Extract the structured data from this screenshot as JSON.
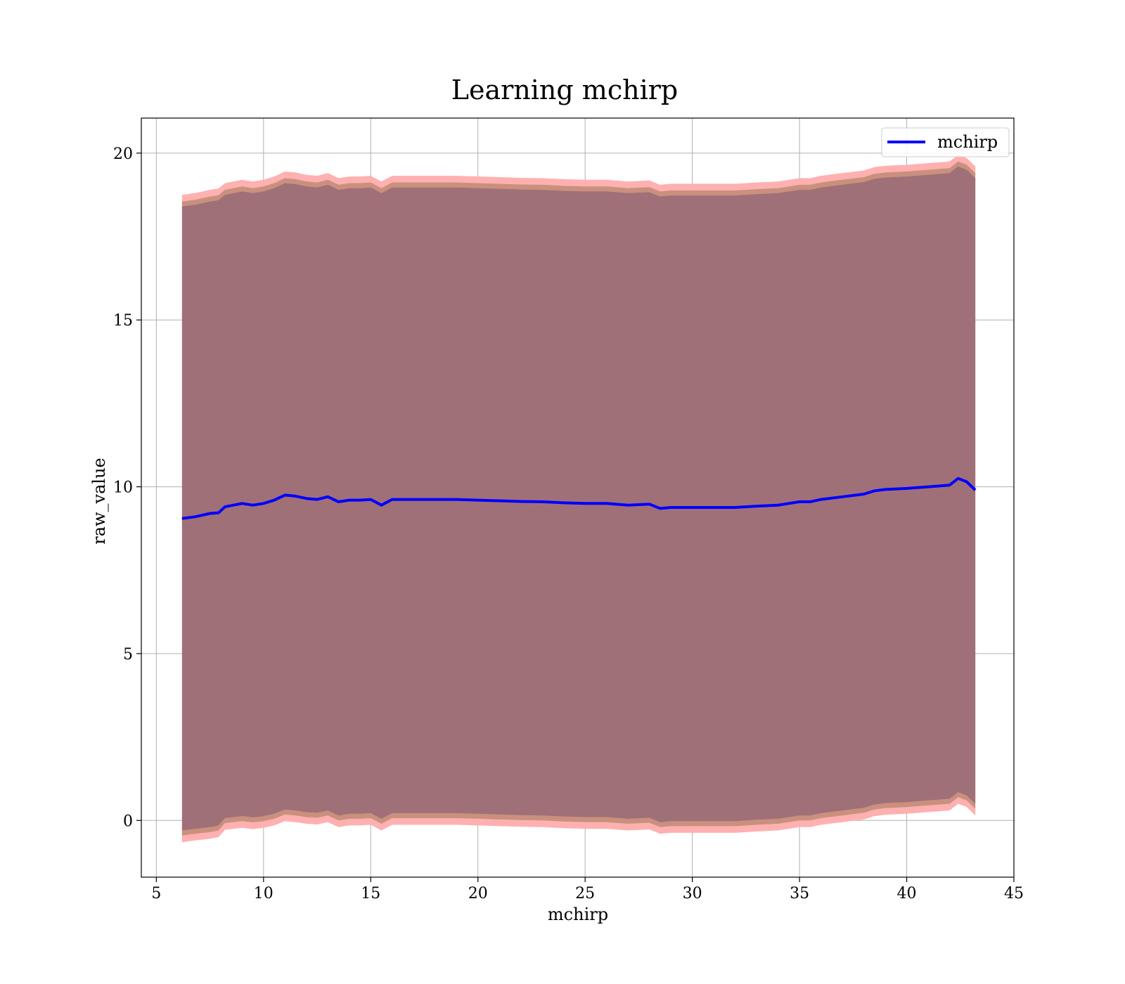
{
  "chart_data": {
    "type": "area",
    "title": "Learning mchirp",
    "xlabel": "mchirp",
    "ylabel": "raw_value",
    "xlim": [
      4.3,
      45
    ],
    "ylim": [
      -1.7,
      21.05
    ],
    "xticks": [
      5,
      10,
      15,
      20,
      25,
      30,
      35,
      40,
      45
    ],
    "yticks": [
      0,
      5,
      10,
      15,
      20
    ],
    "grid": true,
    "legend": {
      "position": "top-right",
      "entries": [
        "mchirp"
      ]
    },
    "colors": {
      "line": "#0000ff",
      "band_outer": "#ffb0b0",
      "band_middle": "#c9907e",
      "band_inner": "#a07078",
      "grid": "#b0b0b0"
    },
    "series": [
      {
        "name": "mchirp",
        "x": [
          6.2,
          6.8,
          7.5,
          7.9,
          8.2,
          9.0,
          9.5,
          10.0,
          10.5,
          11.0,
          11.5,
          12.0,
          12.5,
          13.0,
          13.5,
          14.0,
          14.5,
          15.0,
          15.5,
          16.0,
          17.0,
          18.0,
          19.0,
          20.0,
          21.0,
          22.0,
          23.0,
          24.0,
          25.0,
          26.0,
          27.0,
          28.0,
          28.5,
          29.0,
          30.0,
          31.0,
          32.0,
          33.0,
          34.0,
          35.0,
          35.5,
          36.0,
          37.0,
          38.0,
          38.5,
          39.0,
          40.0,
          41.0,
          42.0,
          42.4,
          42.8,
          43.2
        ],
        "mean": [
          9.05,
          9.1,
          9.2,
          9.22,
          9.4,
          9.5,
          9.45,
          9.5,
          9.6,
          9.75,
          9.72,
          9.65,
          9.62,
          9.7,
          9.55,
          9.6,
          9.6,
          9.62,
          9.45,
          9.62,
          9.62,
          9.62,
          9.62,
          9.6,
          9.58,
          9.56,
          9.55,
          9.52,
          9.5,
          9.5,
          9.45,
          9.48,
          9.35,
          9.38,
          9.38,
          9.38,
          9.38,
          9.42,
          9.45,
          9.55,
          9.55,
          9.62,
          9.7,
          9.78,
          9.88,
          9.92,
          9.95,
          10.0,
          10.05,
          10.25,
          10.15,
          9.9
        ],
        "bands": [
          {
            "sigma": 3,
            "lower": [
              -0.65,
              -0.6,
              -0.55,
              -0.5,
              -0.28,
              -0.22,
              -0.26,
              -0.22,
              -0.15,
              -0.02,
              -0.05,
              -0.1,
              -0.12,
              -0.05,
              -0.2,
              -0.15,
              -0.15,
              -0.13,
              -0.3,
              -0.13,
              -0.13,
              -0.13,
              -0.13,
              -0.15,
              -0.17,
              -0.19,
              -0.2,
              -0.23,
              -0.25,
              -0.25,
              -0.3,
              -0.27,
              -0.4,
              -0.37,
              -0.37,
              -0.37,
              -0.37,
              -0.33,
              -0.3,
              -0.2,
              -0.2,
              -0.13,
              -0.05,
              0.03,
              0.13,
              0.17,
              0.2,
              0.25,
              0.3,
              0.5,
              0.4,
              0.15
            ],
            "upper": [
              18.75,
              18.8,
              18.9,
              18.94,
              19.1,
              19.2,
              19.15,
              19.2,
              19.3,
              19.45,
              19.42,
              19.35,
              19.32,
              19.4,
              19.25,
              19.3,
              19.3,
              19.32,
              19.15,
              19.32,
              19.32,
              19.32,
              19.32,
              19.3,
              19.28,
              19.26,
              19.25,
              19.22,
              19.2,
              19.2,
              19.15,
              19.18,
              19.05,
              19.08,
              19.08,
              19.08,
              19.08,
              19.12,
              19.15,
              19.25,
              19.25,
              19.32,
              19.4,
              19.48,
              19.58,
              19.62,
              19.65,
              19.7,
              19.75,
              19.95,
              19.85,
              19.6
            ]
          },
          {
            "sigma": 2,
            "lower": [
              -0.45,
              -0.4,
              -0.35,
              -0.3,
              -0.08,
              -0.02,
              -0.06,
              -0.02,
              0.05,
              0.18,
              0.15,
              0.1,
              0.08,
              0.15,
              0.0,
              0.05,
              0.05,
              0.07,
              -0.1,
              0.07,
              0.07,
              0.07,
              0.07,
              0.05,
              0.03,
              0.01,
              0.0,
              -0.03,
              -0.05,
              -0.05,
              -0.1,
              -0.07,
              -0.2,
              -0.17,
              -0.17,
              -0.17,
              -0.17,
              -0.13,
              -0.1,
              0.0,
              0.0,
              0.07,
              0.15,
              0.23,
              0.33,
              0.37,
              0.4,
              0.45,
              0.5,
              0.7,
              0.6,
              0.35
            ],
            "upper": [
              18.55,
              18.6,
              18.7,
              18.74,
              18.9,
              19.0,
              18.95,
              19.0,
              19.1,
              19.25,
              19.22,
              19.15,
              19.12,
              19.2,
              19.05,
              19.1,
              19.1,
              19.12,
              18.95,
              19.12,
              19.12,
              19.12,
              19.12,
              19.1,
              19.08,
              19.06,
              19.05,
              19.02,
              19.0,
              19.0,
              18.95,
              18.98,
              18.85,
              18.88,
              18.88,
              18.88,
              18.88,
              18.92,
              18.95,
              19.05,
              19.05,
              19.12,
              19.2,
              19.28,
              19.38,
              19.42,
              19.45,
              19.5,
              19.55,
              19.75,
              19.65,
              19.4
            ]
          },
          {
            "sigma": 1,
            "lower": [
              -0.3,
              -0.25,
              -0.2,
              -0.15,
              0.07,
              0.13,
              0.09,
              0.13,
              0.2,
              0.33,
              0.3,
              0.25,
              0.23,
              0.3,
              0.15,
              0.2,
              0.2,
              0.22,
              0.05,
              0.22,
              0.22,
              0.22,
              0.22,
              0.2,
              0.18,
              0.16,
              0.15,
              0.12,
              0.1,
              0.1,
              0.05,
              0.08,
              -0.05,
              -0.02,
              -0.02,
              -0.02,
              -0.02,
              0.02,
              0.05,
              0.15,
              0.15,
              0.22,
              0.3,
              0.38,
              0.48,
              0.52,
              0.55,
              0.6,
              0.65,
              0.85,
              0.75,
              0.5
            ],
            "upper": [
              18.4,
              18.45,
              18.55,
              18.59,
              18.75,
              18.85,
              18.8,
              18.85,
              18.95,
              19.1,
              19.07,
              19.0,
              18.97,
              19.05,
              18.9,
              18.95,
              18.95,
              18.97,
              18.8,
              18.97,
              18.97,
              18.97,
              18.97,
              18.95,
              18.93,
              18.91,
              18.9,
              18.87,
              18.85,
              18.85,
              18.8,
              18.83,
              18.7,
              18.73,
              18.73,
              18.73,
              18.73,
              18.77,
              18.8,
              18.9,
              18.9,
              18.97,
              19.05,
              19.13,
              19.23,
              19.27,
              19.3,
              19.35,
              19.4,
              19.6,
              19.5,
              19.25
            ]
          }
        ]
      }
    ]
  }
}
